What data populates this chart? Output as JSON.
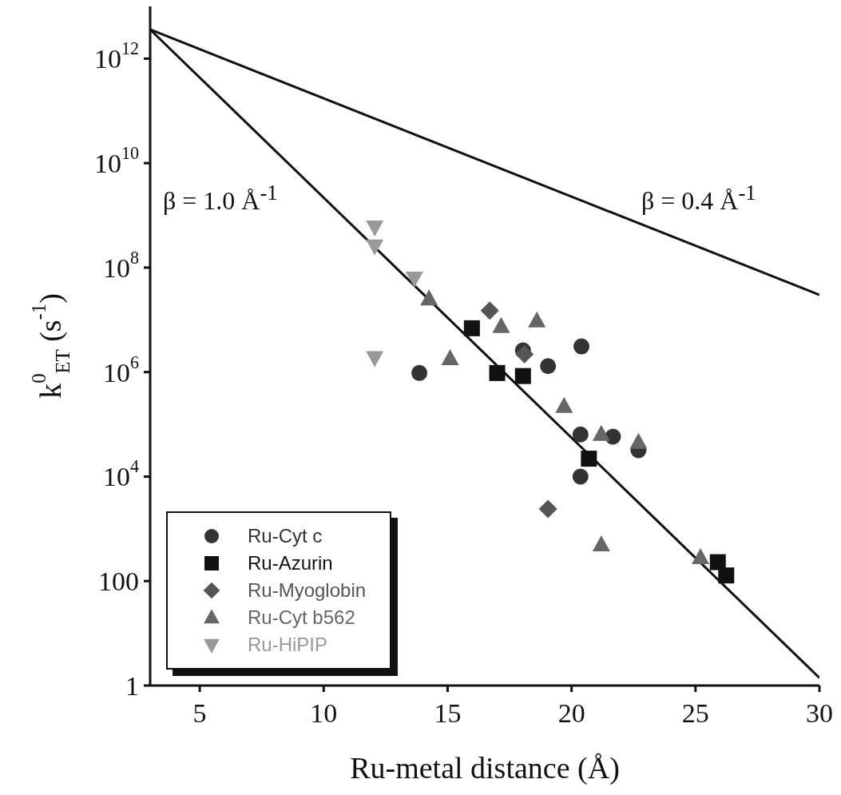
{
  "chart_data": {
    "type": "scatter",
    "xlabel": "Ru-metal distance (Å)",
    "ylabel": "k$^{0}$$_{ET}$ (s$^{-1}$)",
    "xlim": [
      3,
      30
    ],
    "xticks": [
      5,
      10,
      15,
      20,
      25,
      30
    ],
    "ylim": [
      1,
      10000000000000
    ],
    "log": "y",
    "yticks": [
      {
        "value": 1,
        "label": "1"
      },
      {
        "value": 100,
        "label": "100"
      },
      {
        "value": 10000,
        "label": "10$^{4}$"
      },
      {
        "value": 1000000,
        "label": "10$^{6}$"
      },
      {
        "value": 100000000,
        "label": "10$^{8}$"
      },
      {
        "value": 10000000000,
        "label": "10$^{10}$"
      },
      {
        "value": 1000000000000,
        "label": "10$^{12}$"
      }
    ],
    "legend": "bottom left",
    "annotations": [
      "β = 1.0 Å$^{-1}$",
      "β = 0.4 Å$^{-1}$"
    ],
    "series": [
      {
        "name": "Ru-Cyt c",
        "color": "#333333",
        "marker": "circle",
        "x": [
          13.86,
          18.04,
          19.05,
          20.4,
          20.36,
          21.67,
          22.7,
          20.36
        ],
        "values": [
          960000,
          2600000,
          1300000,
          3100000,
          64000,
          58000,
          32000,
          10000
        ]
      },
      {
        "name": "Ru-Azurin",
        "color": "#111111",
        "marker": "square",
        "x": [
          15.98,
          17.0,
          18.04,
          20.7,
          25.9,
          26.24
        ],
        "values": [
          6900000,
          960000,
          840000,
          22000,
          230,
          128
        ]
      },
      {
        "name": "Ru-Myoglobin",
        "color": "#555555",
        "marker": "diamond",
        "x": [
          16.7,
          18.1,
          19.05
        ],
        "values": [
          15000000,
          2200000,
          2400
        ]
      },
      {
        "name": "Ru-Cyt b562",
        "color": "#666666",
        "marker": "triangle",
        "x": [
          14.25,
          15.1,
          17.16,
          18.6,
          19.7,
          21.2,
          22.7,
          21.2,
          25.2
        ],
        "values": [
          25000000,
          1800000,
          7400000,
          9500000,
          220000,
          64000,
          45000,
          490,
          280
        ]
      },
      {
        "name": "Ru-HiPIP",
        "color": "#999999",
        "marker": "triangle-down",
        "x": [
          12.06,
          12.06,
          13.66,
          12.06
        ],
        "values": [
          600000000,
          260000000,
          63000000,
          1900000
        ]
      },
      {
        "type": "line",
        "color": "#111111",
        "x": [
          3,
          30
        ],
        "values": [
          3600000000000,
          1.4
        ]
      },
      {
        "type": "line",
        "color": "#111111",
        "x": [
          3,
          30
        ],
        "values": [
          3600000000000,
          30000000
        ]
      }
    ]
  }
}
